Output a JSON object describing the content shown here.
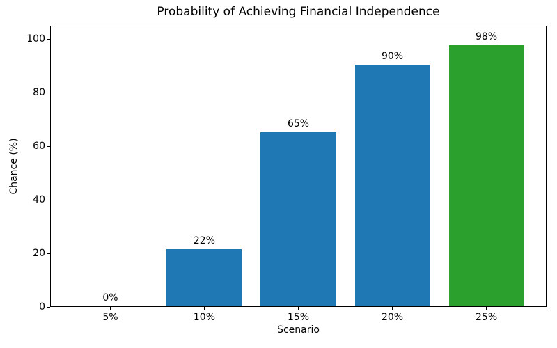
{
  "chart_data": {
    "type": "bar",
    "title": "Probability of Achieving Financial Independence",
    "xlabel": "Scenario",
    "ylabel": "Chance (%)",
    "categories": [
      "5%",
      "10%",
      "15%",
      "20%",
      "25%"
    ],
    "values": [
      0.3,
      21.6,
      65.3,
      90.4,
      97.7
    ],
    "bar_labels": [
      "0%",
      "22%",
      "65%",
      "90%",
      "98%"
    ],
    "bar_colors": [
      "#1f77b4",
      "#1f77b4",
      "#1f77b4",
      "#1f77b4",
      "#2ca02c"
    ],
    "yticks": [
      0,
      20,
      40,
      60,
      80,
      100
    ],
    "ylim": [
      0,
      105
    ],
    "xlim": [
      -0.64,
      4.64
    ],
    "bar_width_units": 0.8,
    "grid": false,
    "legend": false,
    "background": "#ffffff"
  }
}
